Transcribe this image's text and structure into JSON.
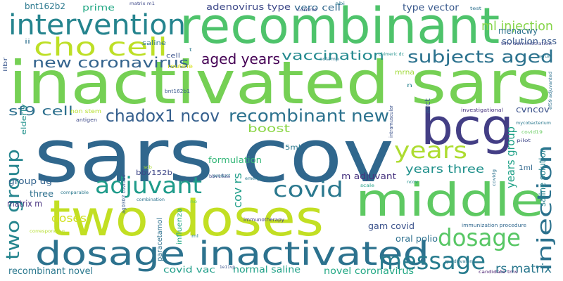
{
  "words": [
    {
      "text": "sars cov",
      "color": "#30678d"
    },
    {
      "text": "inactivated sars",
      "color": "#75d054"
    },
    {
      "text": "recombinant",
      "color": "#4ec36b"
    },
    {
      "text": "two doses",
      "color": "#c2df23"
    },
    {
      "text": "middle",
      "color": "#5ec962"
    },
    {
      "text": "bcg",
      "color": "#433e85"
    },
    {
      "text": "dosage inactivated",
      "color": "#2c728e"
    },
    {
      "text": "intervention",
      "color": "#25848e"
    },
    {
      "text": "cho cell",
      "color": "#bddf26"
    },
    {
      "text": "adjuvant",
      "color": "#1e9b8a"
    },
    {
      "text": "covid",
      "color": "#2a788e"
    },
    {
      "text": "years",
      "color": "#addc30"
    },
    {
      "text": "dosage",
      "color": "#58c765"
    },
    {
      "text": "message",
      "color": "#287c8e"
    },
    {
      "text": "two group",
      "color": "#25858e"
    },
    {
      "text": "injection",
      "color": "#2c728e"
    },
    {
      "text": "chadox1 ncov",
      "color": "#355f8d"
    },
    {
      "text": "recombinant new",
      "color": "#2c728e"
    },
    {
      "text": "subjects aged",
      "color": "#2c728e"
    },
    {
      "text": "new coronavirus",
      "color": "#33638d"
    },
    {
      "text": "aged years",
      "color": "#440154"
    },
    {
      "text": "vaccination",
      "color": "#23898e"
    },
    {
      "text": "sf9 cell",
      "color": "#2d708e"
    },
    {
      "text": "boost",
      "color": "#8bd646"
    },
    {
      "text": "years group",
      "color": "#1fa187"
    },
    {
      "text": "years three",
      "color": "#21918c"
    },
    {
      "text": "ml injection",
      "color": "#86d549"
    },
    {
      "text": "menacwy",
      "color": "#2c728e"
    },
    {
      "text": "solution nss",
      "color": "#38598c"
    },
    {
      "text": "type vector",
      "color": "#38588c"
    },
    {
      "text": "adenovirus type",
      "color": "#3e4989"
    },
    {
      "text": "vero cell",
      "color": "#31688e"
    },
    {
      "text": "prime",
      "color": "#22a884"
    },
    {
      "text": "bnt162b2",
      "color": "#2a788e"
    },
    {
      "text": "cov rs",
      "color": "#1f9e89"
    },
    {
      "text": "saline solution",
      "color": "#25838e"
    },
    {
      "text": "cvncov",
      "color": "#3b528b"
    },
    {
      "text": "arct",
      "color": "#38598c"
    },
    {
      "text": "mrna",
      "color": "#a0da39"
    },
    {
      "text": "formulation",
      "color": "#35b779"
    },
    {
      "text": "bbv152b",
      "color": "#3f4788"
    },
    {
      "text": "5ml",
      "color": "#2a788e"
    },
    {
      "text": "group ug",
      "color": "#33638d"
    },
    {
      "text": "three",
      "color": "#2d708e"
    },
    {
      "text": "matrix m",
      "color": "#46307e"
    },
    {
      "text": "doses",
      "color": "#d0e11c"
    },
    {
      "text": "m adjuvant",
      "color": "#46327e"
    },
    {
      "text": "gam covid",
      "color": "#3b528b"
    },
    {
      "text": "oral polio",
      "color": "#2d708e"
    },
    {
      "text": "paracetamol",
      "color": "#2d708e"
    },
    {
      "text": "influenza",
      "color": "#22a884"
    },
    {
      "text": "recombinant novel",
      "color": "#2a788e"
    },
    {
      "text": "covid vac",
      "color": "#1f9e89"
    },
    {
      "text": "normal saline",
      "color": "#1fa187"
    },
    {
      "text": "novel coronavirus",
      "color": "#22a884"
    },
    {
      "text": "rs matrix",
      "color": "#2a788e"
    },
    {
      "text": "1ml",
      "color": "#31688e"
    },
    {
      "text": "elderly",
      "color": "#21918c"
    },
    {
      "text": "ii",
      "color": "#2d708e"
    },
    {
      "text": "iibr",
      "color": "#39568c"
    },
    {
      "text": "saline",
      "color": "#2c728e"
    },
    {
      "text": "cell",
      "color": "#3b528b"
    },
    {
      "text": "routine",
      "color": "#d8e219"
    },
    {
      "text": "bnt162b1",
      "color": "#38598c"
    },
    {
      "text": "non stem",
      "color": "#b5de2b"
    },
    {
      "text": "antigen",
      "color": "#3e4989"
    },
    {
      "text": "ag0302 covid19",
      "color": "#38598c"
    },
    {
      "text": "scb",
      "color": "#addc30"
    },
    {
      "text": "product",
      "color": "#2a788e"
    },
    {
      "text": "bbv152a",
      "color": "#3e4989"
    },
    {
      "text": "emergency",
      "color": "#2a788e"
    },
    {
      "text": "ncov",
      "color": "#21918c"
    },
    {
      "text": "scale",
      "color": "#1fa187"
    },
    {
      "text": "combination",
      "color": "#2c728e"
    },
    {
      "text": "immunotherapy",
      "color": "#443983"
    },
    {
      "text": "comparable",
      "color": "#2a788e"
    },
    {
      "text": "corresponding",
      "color": "#b5de2b"
    },
    {
      "text": "no",
      "color": "#65cb5e"
    },
    {
      "text": "ml",
      "color": "#26828e"
    },
    {
      "text": "matrix m1",
      "color": "#3e4989"
    },
    {
      "text": "control",
      "color": "#404688"
    },
    {
      "text": "abi",
      "color": "#2a788e"
    },
    {
      "text": "test",
      "color": "#2d708e"
    },
    {
      "text": "tmv administration",
      "color": "#3f4788"
    },
    {
      "text": "sclamp",
      "color": "#2a788e"
    },
    {
      "text": "chimeric dc",
      "color": "#21918c"
    },
    {
      "text": "n",
      "color": "#26828e"
    },
    {
      "text": "intramuscular",
      "color": "#3b528b"
    },
    {
      "text": "investigational",
      "color": "#46327e"
    },
    {
      "text": "mycobacterium",
      "color": "#2a788e"
    },
    {
      "text": "covid19",
      "color": "#65cb5e"
    },
    {
      "text": "pilot",
      "color": "#3f4788"
    },
    {
      "text": "covidg",
      "color": "#2c728e"
    },
    {
      "text": "ef59 adjuvanted",
      "color": "#2d708e"
    },
    {
      "text": "adult",
      "color": "#2a788e"
    },
    {
      "text": "t",
      "color": "#2a788e"
    },
    {
      "text": "immunization procedure",
      "color": "#31688e"
    },
    {
      "text": "1e11vp",
      "color": "#3b528b"
    },
    {
      "text": "candidate tmv",
      "color": "#481d6f"
    },
    {
      "text": "quadrivalent",
      "color": "#2a788e"
    }
  ]
}
